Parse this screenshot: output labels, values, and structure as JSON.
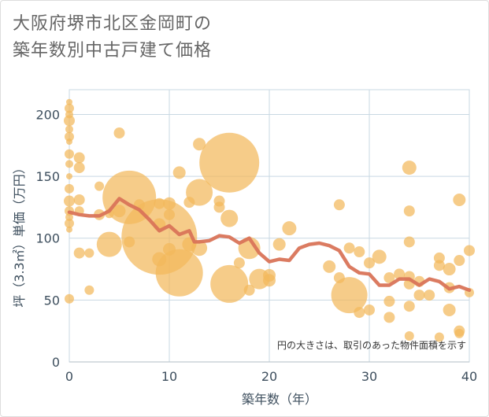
{
  "title_line1": "大阪府堺市北区金岡町の",
  "title_line2": "築年数別中古戸建て価格",
  "note": "円の大きさは、取引のあった物件面積を示す",
  "colors": {
    "bubble": "#f3b95c",
    "line": "#d97458",
    "grid": "#c8d8e3",
    "axis": "#3e4f5e"
  },
  "chart_data": {
    "type": "scatter",
    "xlabel": "築年数（年）",
    "ylabel": "坪（3.3㎡）単価（万円）",
    "xlim": [
      0,
      40
    ],
    "ylim": [
      0,
      220
    ],
    "xticks": [
      "0",
      "10",
      "20",
      "30",
      "40"
    ],
    "yticks": [
      "0",
      "50",
      "100",
      "150",
      "200"
    ],
    "grid": true,
    "bubbles": [
      {
        "x": 0,
        "y": 210,
        "r": 4
      },
      {
        "x": 0,
        "y": 205,
        "r": 6
      },
      {
        "x": 0,
        "y": 200,
        "r": 5
      },
      {
        "x": 0,
        "y": 195,
        "r": 7
      },
      {
        "x": 0,
        "y": 188,
        "r": 5
      },
      {
        "x": 0,
        "y": 182,
        "r": 6
      },
      {
        "x": 0,
        "y": 178,
        "r": 4
      },
      {
        "x": 0,
        "y": 168,
        "r": 6
      },
      {
        "x": 0,
        "y": 160,
        "r": 5
      },
      {
        "x": 0,
        "y": 150,
        "r": 4
      },
      {
        "x": 0,
        "y": 140,
        "r": 6
      },
      {
        "x": 0,
        "y": 130,
        "r": 7
      },
      {
        "x": 0,
        "y": 122,
        "r": 6
      },
      {
        "x": 0,
        "y": 117,
        "r": 5
      },
      {
        "x": 0,
        "y": 112,
        "r": 6
      },
      {
        "x": 0,
        "y": 107,
        "r": 4
      },
      {
        "x": 0,
        "y": 51,
        "r": 6
      },
      {
        "x": 1,
        "y": 165,
        "r": 7
      },
      {
        "x": 1,
        "y": 157,
        "r": 7
      },
      {
        "x": 1,
        "y": 131,
        "r": 7
      },
      {
        "x": 1,
        "y": 122,
        "r": 6
      },
      {
        "x": 1,
        "y": 88,
        "r": 7
      },
      {
        "x": 2,
        "y": 88,
        "r": 6
      },
      {
        "x": 2,
        "y": 58,
        "r": 6
      },
      {
        "x": 3,
        "y": 142,
        "r": 6
      },
      {
        "x": 3,
        "y": 119,
        "r": 7
      },
      {
        "x": 4,
        "y": 95,
        "r": 16
      },
      {
        "x": 4,
        "y": 120,
        "r": 6
      },
      {
        "x": 5,
        "y": 185,
        "r": 7
      },
      {
        "x": 5,
        "y": 122,
        "r": 8
      },
      {
        "x": 6,
        "y": 133,
        "r": 34
      },
      {
        "x": 6,
        "y": 97,
        "r": 7
      },
      {
        "x": 7,
        "y": 127,
        "r": 7
      },
      {
        "x": 9,
        "y": 101,
        "r": 48
      },
      {
        "x": 9,
        "y": 83,
        "r": 9
      },
      {
        "x": 9,
        "y": 111,
        "r": 8
      },
      {
        "x": 9,
        "y": 128,
        "r": 7
      },
      {
        "x": 10,
        "y": 128,
        "r": 8
      },
      {
        "x": 10,
        "y": 119,
        "r": 7
      },
      {
        "x": 10,
        "y": 91,
        "r": 8
      },
      {
        "x": 11,
        "y": 72,
        "r": 30
      },
      {
        "x": 11,
        "y": 153,
        "r": 8
      },
      {
        "x": 12,
        "y": 129,
        "r": 7
      },
      {
        "x": 12,
        "y": 95,
        "r": 9
      },
      {
        "x": 13,
        "y": 176,
        "r": 8
      },
      {
        "x": 13,
        "y": 137,
        "r": 17
      },
      {
        "x": 13,
        "y": 92,
        "r": 10
      },
      {
        "x": 15,
        "y": 130,
        "r": 7
      },
      {
        "x": 15,
        "y": 125,
        "r": 7
      },
      {
        "x": 16,
        "y": 161,
        "r": 38
      },
      {
        "x": 16,
        "y": 116,
        "r": 11
      },
      {
        "x": 16,
        "y": 63,
        "r": 24
      },
      {
        "x": 17,
        "y": 80,
        "r": 7
      },
      {
        "x": 18,
        "y": 92,
        "r": 14
      },
      {
        "x": 18,
        "y": 58,
        "r": 7
      },
      {
        "x": 19,
        "y": 67,
        "r": 13
      },
      {
        "x": 20,
        "y": 70,
        "r": 8
      },
      {
        "x": 20,
        "y": 66,
        "r": 8
      },
      {
        "x": 21,
        "y": 95,
        "r": 8
      },
      {
        "x": 22,
        "y": 108,
        "r": 9
      },
      {
        "x": 26,
        "y": 77,
        "r": 8
      },
      {
        "x": 27,
        "y": 127,
        "r": 7
      },
      {
        "x": 27,
        "y": 68,
        "r": 7
      },
      {
        "x": 28,
        "y": 92,
        "r": 7
      },
      {
        "x": 28,
        "y": 54,
        "r": 23
      },
      {
        "x": 29,
        "y": 89,
        "r": 7
      },
      {
        "x": 29,
        "y": 40,
        "r": 7
      },
      {
        "x": 30,
        "y": 80,
        "r": 7
      },
      {
        "x": 30,
        "y": 42,
        "r": 7
      },
      {
        "x": 31,
        "y": 85,
        "r": 9
      },
      {
        "x": 32,
        "y": 68,
        "r": 7
      },
      {
        "x": 32,
        "y": 49,
        "r": 7
      },
      {
        "x": 32,
        "y": 36,
        "r": 7
      },
      {
        "x": 33,
        "y": 71,
        "r": 7
      },
      {
        "x": 34,
        "y": 157,
        "r": 9
      },
      {
        "x": 34,
        "y": 122,
        "r": 7
      },
      {
        "x": 34,
        "y": 97,
        "r": 7
      },
      {
        "x": 34,
        "y": 69,
        "r": 7
      },
      {
        "x": 34,
        "y": 63,
        "r": 7
      },
      {
        "x": 34,
        "y": 45,
        "r": 7
      },
      {
        "x": 34,
        "y": 21,
        "r": 6
      },
      {
        "x": 35,
        "y": 54,
        "r": 7
      },
      {
        "x": 35,
        "y": 65,
        "r": 7
      },
      {
        "x": 36,
        "y": 54,
        "r": 7
      },
      {
        "x": 37,
        "y": 84,
        "r": 7
      },
      {
        "x": 37,
        "y": 78,
        "r": 7
      },
      {
        "x": 37,
        "y": 20,
        "r": 6
      },
      {
        "x": 38,
        "y": 75,
        "r": 8
      },
      {
        "x": 38,
        "y": 60,
        "r": 7
      },
      {
        "x": 38,
        "y": 42,
        "r": 8
      },
      {
        "x": 39,
        "y": 131,
        "r": 8
      },
      {
        "x": 39,
        "y": 82,
        "r": 7
      },
      {
        "x": 39,
        "y": 25,
        "r": 7
      },
      {
        "x": 39,
        "y": 23,
        "r": 6
      },
      {
        "x": 40,
        "y": 90,
        "r": 7
      },
      {
        "x": 40,
        "y": 56,
        "r": 6
      }
    ],
    "series": [
      {
        "values": [
          [
            0,
            121
          ],
          [
            1,
            119
          ],
          [
            2,
            118
          ],
          [
            3,
            118
          ],
          [
            4,
            122
          ],
          [
            5,
            132
          ],
          [
            6,
            127
          ],
          [
            7,
            123
          ],
          [
            8,
            115
          ],
          [
            9,
            106
          ],
          [
            10,
            110
          ],
          [
            11,
            103
          ],
          [
            12,
            106
          ],
          [
            12.5,
            97
          ],
          [
            13,
            97
          ],
          [
            14,
            98
          ],
          [
            15,
            102
          ],
          [
            16,
            101
          ],
          [
            17,
            96
          ],
          [
            18,
            100
          ],
          [
            19,
            88
          ],
          [
            20,
            81
          ],
          [
            21,
            83
          ],
          [
            22,
            82
          ],
          [
            23,
            92
          ],
          [
            24,
            95
          ],
          [
            25,
            96
          ],
          [
            26,
            94
          ],
          [
            27,
            90
          ],
          [
            28,
            77
          ],
          [
            29,
            72
          ],
          [
            30,
            71
          ],
          [
            31,
            62
          ],
          [
            32,
            62
          ],
          [
            33,
            67
          ],
          [
            34,
            67
          ],
          [
            35,
            62
          ],
          [
            36,
            67
          ],
          [
            37,
            65
          ],
          [
            38,
            59
          ],
          [
            39,
            61
          ],
          [
            40,
            58
          ]
        ]
      }
    ]
  }
}
